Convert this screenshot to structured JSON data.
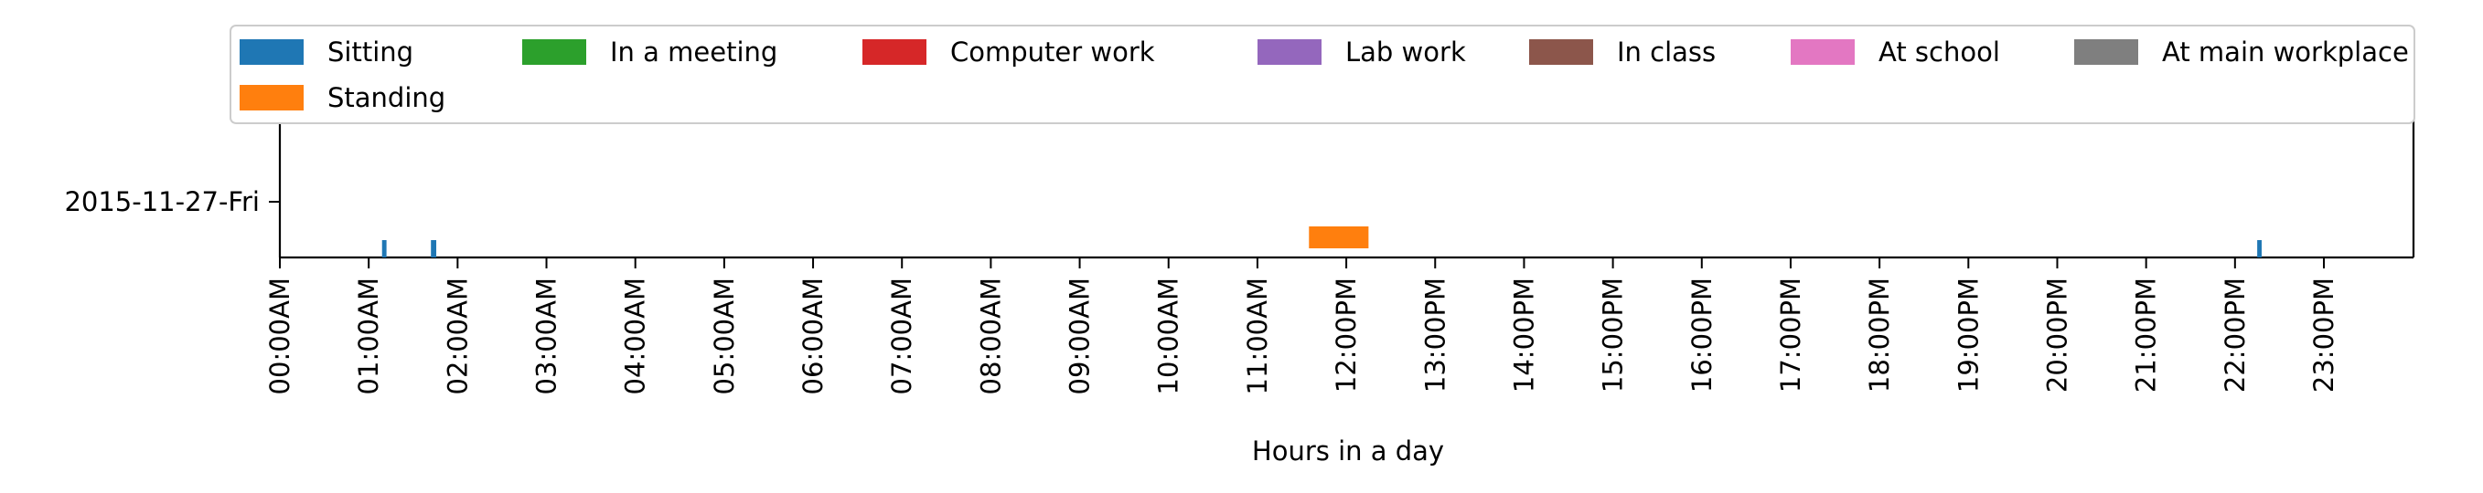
{
  "chart_data": {
    "type": "timeline",
    "title": "",
    "xlabel": "Hours in a day",
    "ylabel": "",
    "xlim": [
      0,
      24
    ],
    "grid": false,
    "legend_placement": "top",
    "categories": [
      "2015-11-27-Fri"
    ],
    "x_tick_labels": [
      "00:00AM",
      "01:00AM",
      "02:00AM",
      "03:00AM",
      "04:00AM",
      "05:00AM",
      "06:00AM",
      "07:00AM",
      "08:00AM",
      "09:00AM",
      "10:00AM",
      "11:00AM",
      "12:00PM",
      "13:00PM",
      "14:00PM",
      "15:00PM",
      "16:00PM",
      "17:00PM",
      "18:00PM",
      "19:00PM",
      "20:00PM",
      "21:00PM",
      "22:00PM",
      "23:00PM"
    ],
    "series": [
      {
        "name": "Sitting",
        "color": "#1f77b4",
        "lane": 0,
        "intervals": [
          [
            1.15,
            1.2
          ],
          [
            1.7,
            1.76
          ],
          [
            22.25,
            22.3
          ]
        ]
      },
      {
        "name": "Standing",
        "color": "#ff7f0e",
        "lane": 1,
        "intervals": [
          [
            11.58,
            12.25
          ]
        ]
      },
      {
        "name": "In a meeting",
        "color": "#2ca02c",
        "lane": 2,
        "intervals": []
      },
      {
        "name": "Computer work",
        "color": "#d62728",
        "lane": 3,
        "intervals": []
      },
      {
        "name": "Lab work",
        "color": "#9467bd",
        "lane": 4,
        "intervals": []
      },
      {
        "name": "In class",
        "color": "#8c564b",
        "lane": 5,
        "intervals": []
      },
      {
        "name": "At school",
        "color": "#e377c2",
        "lane": 6,
        "intervals": []
      },
      {
        "name": "At main workplace",
        "color": "#7f7f7f",
        "lane": 7,
        "intervals": []
      }
    ]
  }
}
